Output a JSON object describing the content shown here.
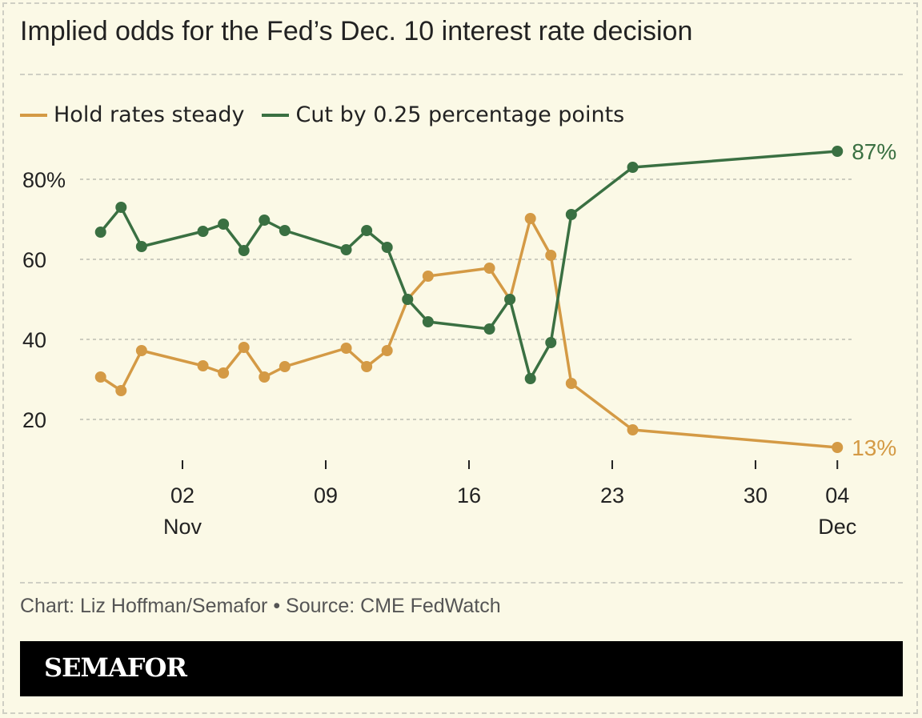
{
  "title": "Implied odds for the Fed’s Dec. 10 interest rate decision",
  "credit": "Chart: Liz Hoffman/Semafor • Source: CME FedWatch",
  "brand": "SEMAFOR",
  "colors": {
    "background": "#fbf9e6",
    "hold": "#d49a45",
    "cut": "#3a7042"
  },
  "chart_data": {
    "type": "line",
    "title": "Implied odds for the Fed’s Dec. 10 interest rate decision",
    "legend_placement": "top-left",
    "grid": "horizontal dashed",
    "ylim": [
      13,
      87
    ],
    "y_ticks": [
      {
        "value": 80,
        "label": "80%"
      },
      {
        "value": 60,
        "label": "60"
      },
      {
        "value": 40,
        "label": "40"
      },
      {
        "value": 20,
        "label": "20"
      }
    ],
    "x_ticks": [
      {
        "date": "Nov 02",
        "label": "02",
        "sub": "Nov"
      },
      {
        "date": "Nov 09",
        "label": "09",
        "sub": ""
      },
      {
        "date": "Nov 16",
        "label": "16",
        "sub": ""
      },
      {
        "date": "Nov 23",
        "label": "23",
        "sub": ""
      },
      {
        "date": "Nov 30",
        "label": "30",
        "sub": ""
      },
      {
        "date": "Dec 04",
        "label": "04",
        "sub": "Dec"
      }
    ],
    "x": [
      "Oct 29",
      "Oct 30",
      "Oct 31",
      "Nov 03",
      "Nov 04",
      "Nov 05",
      "Nov 06",
      "Nov 07",
      "Nov 10",
      "Nov 11",
      "Nov 12",
      "Nov 13",
      "Nov 14",
      "Nov 17",
      "Nov 18",
      "Nov 19",
      "Nov 20",
      "Nov 21",
      "Nov 24",
      "Dec 04"
    ],
    "series": [
      {
        "name": "Hold rates steady",
        "color": "#d49a45",
        "end_label": "13%",
        "values": [
          30.6,
          27.2,
          37.2,
          33.4,
          31.6,
          38.0,
          30.6,
          33.2,
          37.8,
          33.2,
          37.2,
          50.0,
          55.8,
          57.8,
          50.0,
          70.2,
          61.0,
          29.0,
          17.4,
          13.0
        ]
      },
      {
        "name": "Cut by 0.25 percentage points",
        "color": "#3a7042",
        "end_label": "87%",
        "values": [
          66.8,
          73.0,
          63.2,
          67.0,
          68.8,
          62.2,
          69.8,
          67.2,
          62.4,
          67.2,
          63.0,
          50.0,
          44.4,
          42.6,
          50.0,
          30.2,
          39.2,
          71.2,
          83.0,
          87.0
        ]
      }
    ]
  }
}
